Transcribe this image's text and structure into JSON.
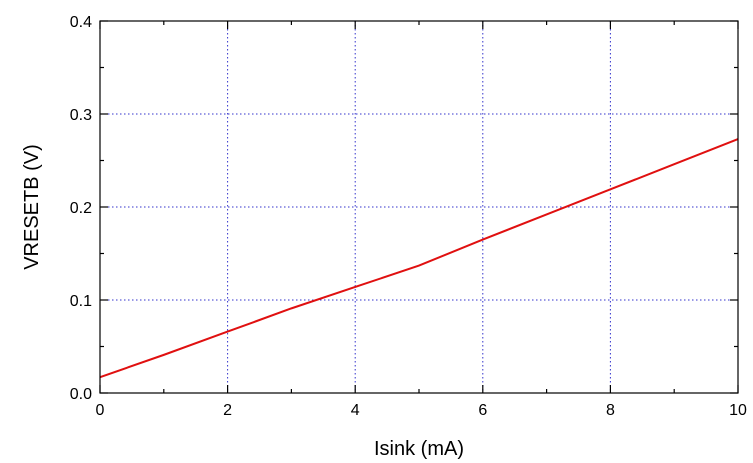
{
  "chart_data": {
    "type": "line",
    "xlabel": "Isink (mA)",
    "ylabel": "VRESETB (V)",
    "xlim": [
      0,
      10
    ],
    "ylim": [
      0,
      0.4
    ],
    "x_ticks": [
      0,
      2,
      4,
      6,
      8,
      10
    ],
    "x_tick_labels": [
      "0",
      "2",
      "4",
      "6",
      "8",
      "10"
    ],
    "y_ticks": [
      0,
      0.1,
      0.2,
      0.3,
      0.4
    ],
    "y_tick_labels": [
      "0.0",
      "0.1",
      "0.2",
      "0.3",
      "0.4"
    ],
    "grid": true,
    "series": [
      {
        "color": "#e01010",
        "x": [
          0,
          1,
          2,
          3,
          4,
          5,
          6,
          7,
          8,
          9,
          10
        ],
        "y": [
          0.017,
          0.041,
          0.066,
          0.091,
          0.114,
          0.137,
          0.165,
          0.192,
          0.219,
          0.246,
          0.273
        ]
      }
    ]
  }
}
